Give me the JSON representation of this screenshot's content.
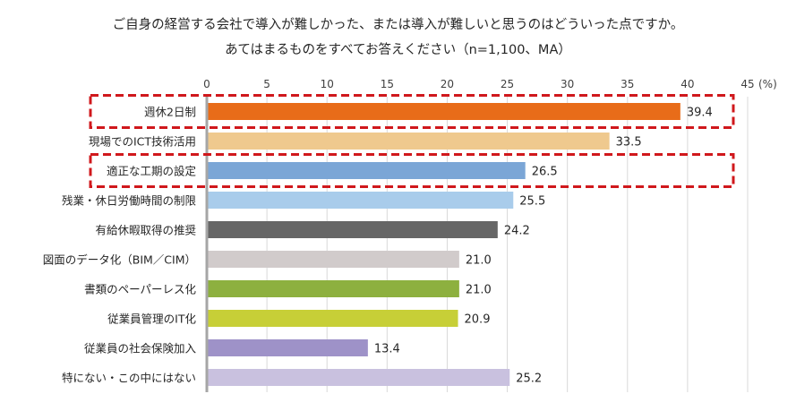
{
  "chart_data": {
    "type": "bar",
    "orientation": "horizontal",
    "title": "ご自身の経営する会社で導入が難しかった、または導入が難しいと思うのはどういった点ですか。",
    "subtitle": "あてはまるものをすべてお答えください（n=1,100、MA）",
    "unit_label": "(%)",
    "xlim": [
      0,
      45
    ],
    "ticks": [
      0,
      5,
      10,
      15,
      20,
      25,
      30,
      35,
      40,
      45
    ],
    "tick_labels": [
      "0",
      "5",
      "10",
      "15",
      "20",
      "25",
      "30",
      "35",
      "40",
      "45"
    ],
    "categories": [
      "週休2日制",
      "現場でのICT技術活用",
      "適正な工期の設定",
      "残業・休日労働時間の制限",
      "有給休暇取得の推奨",
      "図面のデータ化（BIM／CIM）",
      "書類のペーパーレス化",
      "従業員管理のIT化",
      "従業員の社会保険加入",
      "特にない・この中にはない"
    ],
    "values": [
      39.4,
      33.5,
      26.5,
      25.5,
      24.2,
      21.0,
      21.0,
      20.9,
      13.4,
      25.2
    ],
    "value_labels": [
      "39.4",
      "33.5",
      "26.5",
      "25.5",
      "24.2",
      "21.0",
      "21.0",
      "20.9",
      "13.4",
      "25.2"
    ],
    "colors": [
      "#E86C19",
      "#EFC98E",
      "#7BA6D6",
      "#A9CCEB",
      "#666666",
      "#D1CBCB",
      "#8DB03F",
      "#C7CF37",
      "#9E92C8",
      "#C9C1DF"
    ],
    "highlighted": [
      "週休2日制",
      "適正な工期の設定"
    ],
    "highlight_color": "#D0181C",
    "grid": true
  }
}
